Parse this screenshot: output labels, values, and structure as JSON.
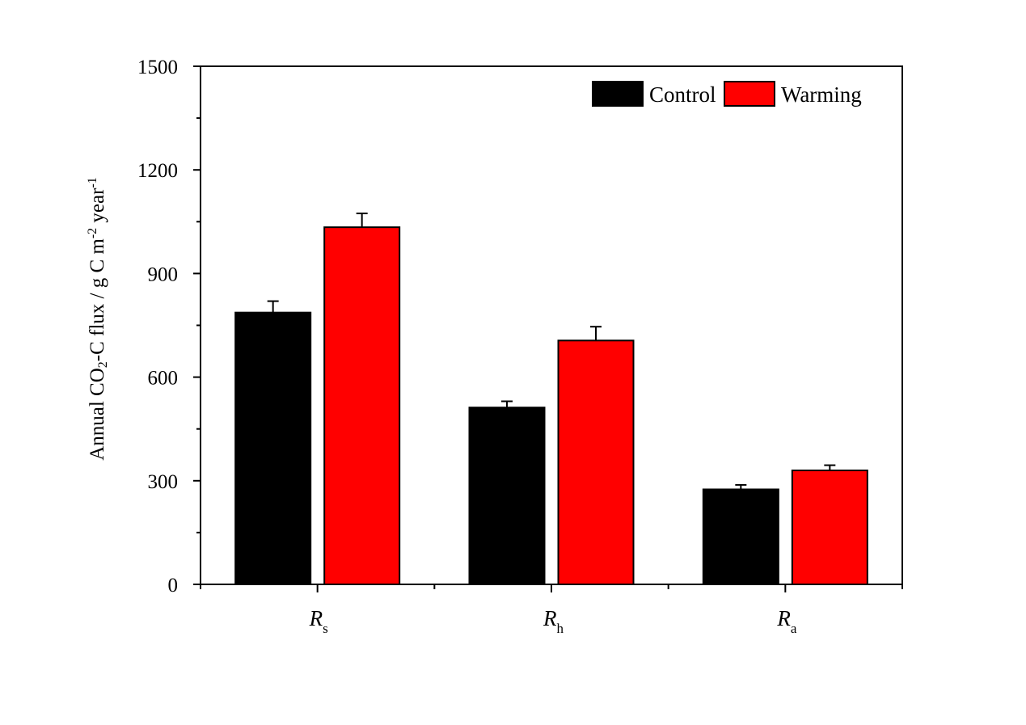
{
  "chart_data": {
    "type": "bar",
    "title": "",
    "categories": [
      {
        "main": "R",
        "sub": "s"
      },
      {
        "main": "R",
        "sub": "h"
      },
      {
        "main": "R",
        "sub": "a"
      }
    ],
    "series": [
      {
        "name": "Control",
        "color": "#000000",
        "values": [
          787,
          512,
          275
        ],
        "errors": [
          33,
          18,
          13
        ]
      },
      {
        "name": "Warming",
        "color": "#ff0000",
        "values": [
          1034,
          706,
          330
        ],
        "errors": [
          40,
          40,
          15
        ]
      }
    ],
    "ylabel": {
      "parts": [
        {
          "t": "Annual CO"
        },
        {
          "t": "2",
          "pos": "sub"
        },
        {
          "t": "-C flux / g C m"
        },
        {
          "t": "-2",
          "pos": "sup"
        },
        {
          "t": " year"
        },
        {
          "t": "-1",
          "pos": "sup"
        }
      ]
    },
    "xlabel": "",
    "ylim": [
      0,
      1500
    ],
    "yticks": [
      "0",
      "300",
      "600",
      "900",
      "1200",
      "1500"
    ],
    "legend_position": "top-right",
    "grid": false
  }
}
